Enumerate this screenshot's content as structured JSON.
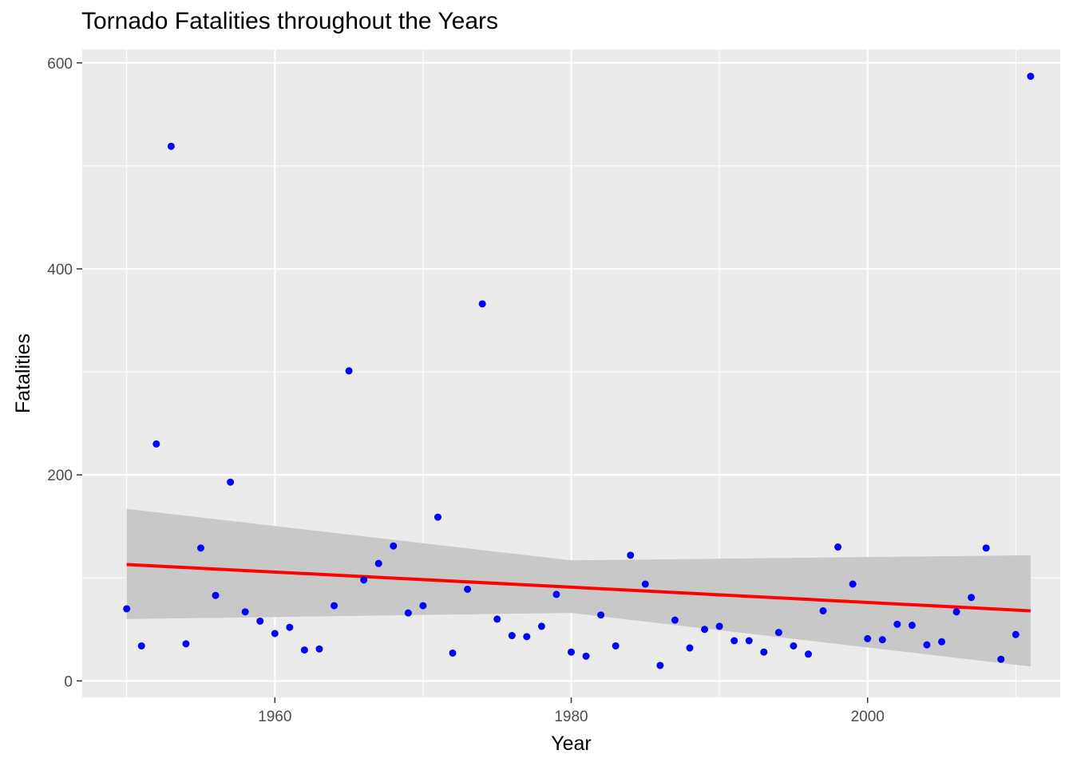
{
  "chart_data": {
    "type": "scatter",
    "title": "Tornado Fatalities throughout the Years",
    "xlabel": "Year",
    "ylabel": "Fatalities",
    "xlim": [
      1947,
      2013
    ],
    "ylim": [
      -16,
      613
    ],
    "x_ticks": [
      1960,
      1980,
      2000
    ],
    "y_ticks": [
      0,
      200,
      400,
      600
    ],
    "grid": true,
    "colors": {
      "panel": "#ebebeb",
      "grid": "#ffffff",
      "points": "#0000ff",
      "trend_line": "#ff0000",
      "confidence_band": "#c8c8c8"
    },
    "series": [
      {
        "x": [
          1950,
          1951,
          1952,
          1953,
          1954,
          1955,
          1956,
          1957,
          1958,
          1959,
          1960,
          1961,
          1962,
          1963,
          1964,
          1965,
          1966,
          1967,
          1968,
          1969,
          1970,
          1971,
          1972,
          1973,
          1974,
          1975,
          1976,
          1977,
          1978,
          1979,
          1980,
          1981,
          1982,
          1983,
          1984,
          1985,
          1986,
          1987,
          1988,
          1989,
          1990,
          1991,
          1992,
          1993,
          1994,
          1995,
          1996,
          1997,
          1998,
          1999,
          2000,
          2001,
          2002,
          2003,
          2004,
          2005,
          2006,
          2007,
          2008,
          2009,
          2010,
          2011
        ],
        "values": [
          70,
          34,
          230,
          519,
          36,
          129,
          83,
          193,
          67,
          58,
          46,
          52,
          30,
          31,
          73,
          301,
          98,
          114,
          131,
          66,
          73,
          159,
          27,
          89,
          366,
          60,
          44,
          43,
          53,
          84,
          28,
          24,
          64,
          34,
          122,
          94,
          15,
          59,
          32,
          50,
          53,
          39,
          39,
          28,
          47,
          34,
          26,
          68,
          130,
          94,
          41,
          40,
          55,
          54,
          35,
          38,
          67,
          81,
          129,
          21,
          45,
          587
        ]
      }
    ],
    "trend": {
      "x": [
        1950,
        1980,
        2011
      ],
      "y": [
        113,
        91,
        68
      ],
      "band_upper": [
        167,
        117,
        122
      ],
      "band_lower": [
        60,
        66,
        14
      ]
    }
  }
}
